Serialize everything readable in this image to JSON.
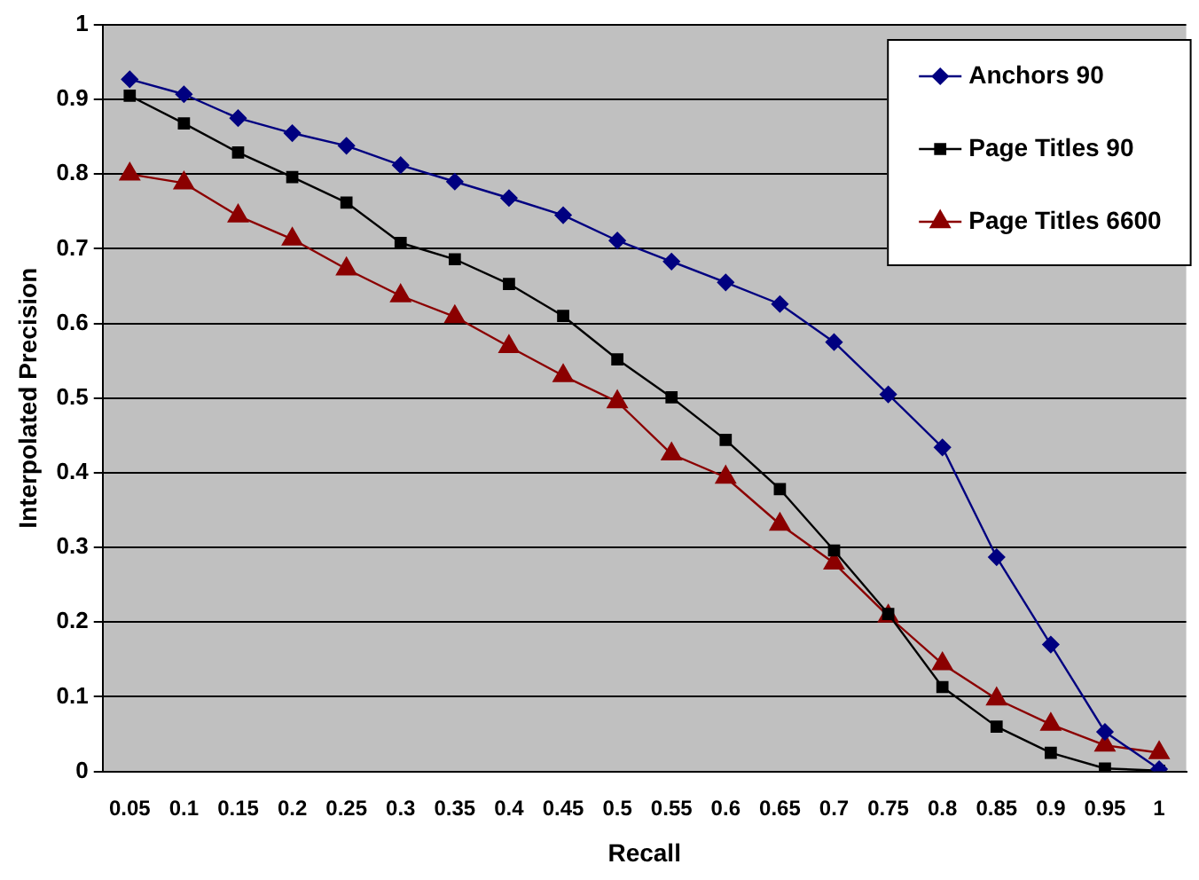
{
  "chart_data": {
    "type": "line",
    "xlabel": "Recall",
    "ylabel": "Interpolated Precision",
    "categories": [
      "0.05",
      "0.1",
      "0.15",
      "0.2",
      "0.25",
      "0.3",
      "0.35",
      "0.4",
      "0.45",
      "0.5",
      "0.55",
      "0.6",
      "0.65",
      "0.7",
      "0.75",
      "0.8",
      "0.85",
      "0.9",
      "0.95",
      "1"
    ],
    "series": [
      {
        "name": "Anchors 90",
        "color": "#000080",
        "marker": "diamond",
        "values": [
          0.927,
          0.907,
          0.875,
          0.855,
          0.838,
          0.812,
          0.79,
          0.768,
          0.745,
          0.711,
          0.683,
          0.655,
          0.626,
          0.575,
          0.505,
          0.434,
          0.287,
          0.17,
          0.053,
          0.003
        ]
      },
      {
        "name": "Page Titles 90",
        "color": "#000000",
        "marker": "square",
        "values": [
          0.905,
          0.868,
          0.829,
          0.796,
          0.762,
          0.708,
          0.686,
          0.653,
          0.61,
          0.552,
          0.501,
          0.444,
          0.378,
          0.296,
          0.211,
          0.113,
          0.06,
          0.025,
          0.004,
          0.001
        ]
      },
      {
        "name": "Page Titles 6600",
        "color": "#8b0000",
        "marker": "triangle",
        "values": [
          0.8,
          0.788,
          0.744,
          0.713,
          0.673,
          0.637,
          0.609,
          0.569,
          0.53,
          0.495,
          0.425,
          0.394,
          0.331,
          0.279,
          0.208,
          0.144,
          0.097,
          0.063,
          0.035,
          0.025
        ]
      }
    ],
    "ylim": [
      0,
      1
    ],
    "yticks": [
      0,
      0.1,
      0.2,
      0.3,
      0.4,
      0.5,
      0.6,
      0.7,
      0.8,
      0.9,
      1
    ],
    "grid": "y",
    "legend": "top right"
  }
}
